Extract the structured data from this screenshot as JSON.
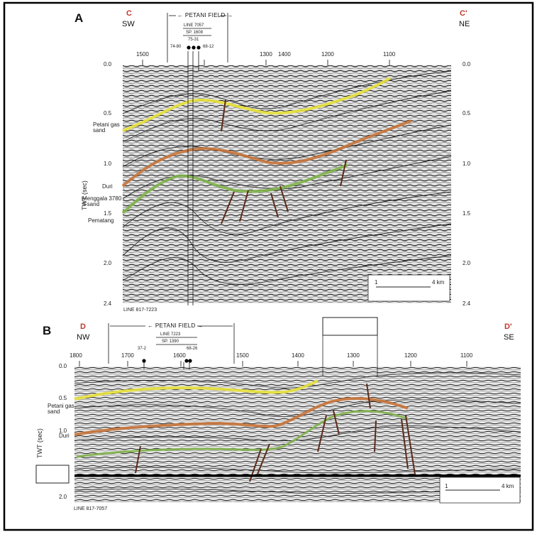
{
  "panels": [
    {
      "letter": "A",
      "left_label": "C",
      "left_dir": "SW",
      "right_label": "C'",
      "right_dir": "NE",
      "field_name": "PETANI FIELD",
      "line_ref": "LINE 7057",
      "sp_ref": "SP. 1608",
      "wells": [
        "74-80",
        "75-31",
        "68-12"
      ],
      "x_ticks": [
        "1500",
        "1400",
        "1300",
        "1200",
        "1100"
      ],
      "y_ticks_left": [
        "0.0",
        "0.5",
        "1.0",
        "1.5",
        "2.0",
        "2.4"
      ],
      "y_ticks_right": [
        "0.0",
        "0.5",
        "1.0",
        "1.5",
        "2.0",
        "2.4"
      ],
      "y_axis_label": "TWT (sec)",
      "horizon_labels": [
        "Petani gas sand",
        "Duri",
        "Menggala 3780 ft sand",
        "Pematang"
      ],
      "scale_start": "1",
      "scale_end": "4 km",
      "line_caption": "LINE 817-7223"
    },
    {
      "letter": "B",
      "left_label": "D",
      "left_dir": "NW",
      "right_label": "D'",
      "right_dir": "SE",
      "field_name": "PETANI FIELD",
      "line_ref": "LINE 7223",
      "sp_ref": "SP. 1390",
      "wells": [
        "37-2",
        "68-26"
      ],
      "x_ticks": [
        "1800",
        "1700",
        "1600",
        "1500",
        "1400",
        "1300",
        "1200",
        "1100"
      ],
      "y_ticks_left": [
        "0.0",
        "0.5",
        "1.0",
        "2.0"
      ],
      "y_axis_label": "TWT (sec)",
      "horizon_labels": [
        "Petani gas sand",
        "Duri"
      ],
      "scale_start": "1",
      "scale_end": "4 km",
      "line_caption": "LINE 817-7057"
    }
  ],
  "colors": {
    "seismic_bg": "#d9d9d9",
    "horizon_yellow": "#e8e23a",
    "horizon_orange": "#c8743a",
    "horizon_green": "#7fb24a",
    "fault": "#5a2a1a",
    "title_red": "#c0392b"
  }
}
